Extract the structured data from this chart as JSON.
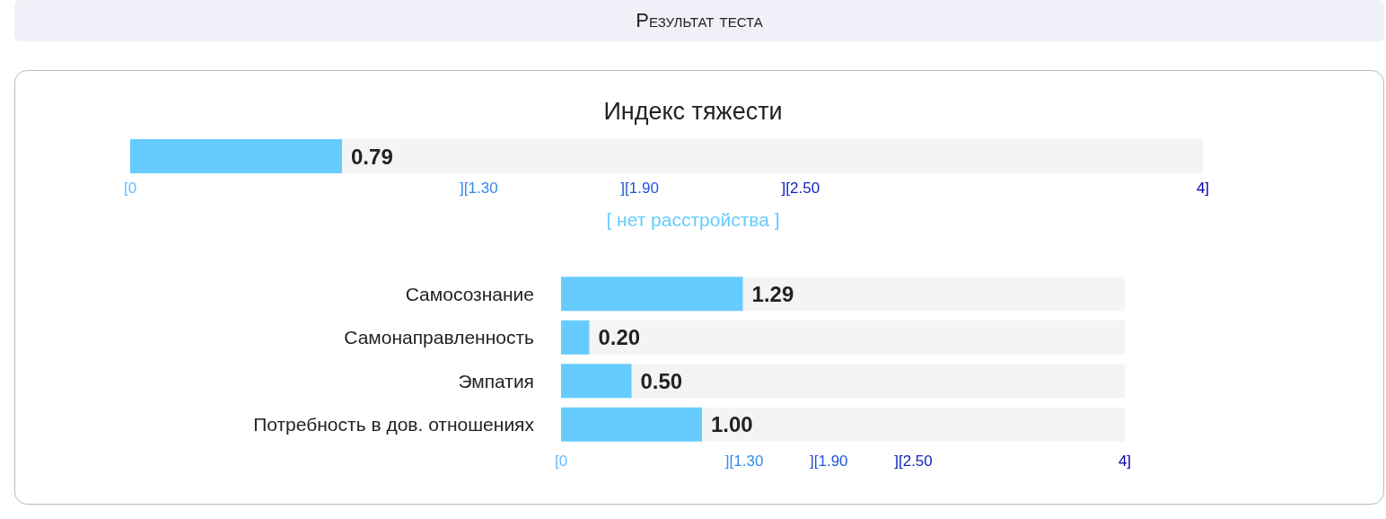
{
  "chart_data": [
    {
      "type": "bar",
      "orientation": "horizontal",
      "title": "Индекс тяжести",
      "categories": [
        null
      ],
      "values": [
        0.79
      ],
      "value_labels": [
        "0.79"
      ],
      "color": "#66ccff",
      "xlim": [
        0,
        4
      ],
      "xticks": [
        {
          "value": 0,
          "label": "[0"
        },
        {
          "value": 1.3,
          "label": "][1.30"
        },
        {
          "value": 1.9,
          "label": "][1.90"
        },
        {
          "value": 2.5,
          "label": "][2.50"
        },
        {
          "value": 4,
          "label": "4]"
        }
      ],
      "annotations": [
        "Результат теста",
        "[ нет расстройства ]"
      ]
    },
    {
      "type": "bar",
      "orientation": "horizontal",
      "categories": [
        "Самосознание",
        "Самонаправленность",
        "Эмпатия",
        "Потребность в дов. отношениях"
      ],
      "values": [
        1.29,
        0.2,
        0.5,
        1.0
      ],
      "value_labels": [
        "1.29",
        "0.20",
        "0.50",
        "1.00"
      ],
      "color": "#66ccff",
      "xlim": [
        0,
        4
      ],
      "xticks": [
        {
          "value": 0,
          "label": "[0"
        },
        {
          "value": 1.3,
          "label": "][1.30"
        },
        {
          "value": 1.9,
          "label": "][1.90"
        },
        {
          "value": 2.5,
          "label": "][2.50"
        },
        {
          "value": 4,
          "label": "4]"
        }
      ]
    }
  ]
}
